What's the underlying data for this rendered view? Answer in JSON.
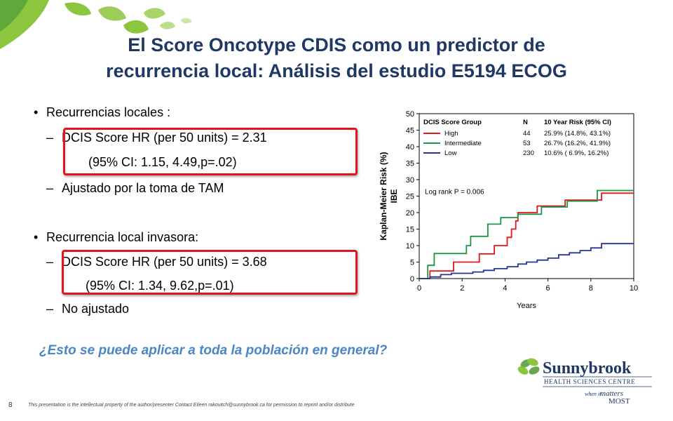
{
  "title": {
    "line1": "El Score Oncotype CDIS  como un predictor de",
    "line2": "recurrencia local: Análisis del estudio E5194 ECOG"
  },
  "bullets": [
    {
      "text": "Recurrencias locales :"
    },
    {
      "text": "DCIS Score HR (per 50 units) = 2.31"
    },
    {
      "text": "(95% CI: 1.15, 4.49,p=.02)"
    },
    {
      "text": "Ajustado por la toma de TAM"
    },
    {
      "text": "Recurrencia local invasora:"
    },
    {
      "text": "DCIS Score HR (per 50 units) = 3.68"
    },
    {
      "text": "(95% CI: 1.34, 9.62,p=.01)"
    },
    {
      "text": "No ajustado"
    }
  ],
  "question": "¿Esto se puede aplicar a toda la población en general?",
  "slide_number": "8",
  "footer": "This presentation is the intellectual property of the author/presenter    Contact Eileen rakovitch@sunnybrook.ca for permission to reprint and/or distribute",
  "logo": {
    "name": "Sunnybrook",
    "subtitle": "HEALTH SCIENCES CENTRE",
    "tagline_small": "when it",
    "tagline_script": "matters",
    "tagline_caps": "MOST"
  },
  "colors": {
    "title": "#1f3864",
    "question": "#4a86c5",
    "box": "#e2151b",
    "high": "#e2151b",
    "intermediate": "#1a9641",
    "low": "#283593"
  },
  "chart_data": {
    "type": "line",
    "step": true,
    "xlabel": "Years",
    "ylabel": "Kaplan-Meier Risk (%)",
    "ylabel2": "IBE",
    "xlim": [
      0,
      10
    ],
    "ylim": [
      0,
      50
    ],
    "xticks": [
      0,
      2,
      4,
      6,
      8,
      10
    ],
    "yticks": [
      0,
      5,
      10,
      15,
      20,
      25,
      30,
      35,
      40,
      45,
      50
    ],
    "legend": {
      "header": [
        "DCIS Score Group",
        "N",
        "10 Year Risk (95% CI)"
      ],
      "position": "top-left"
    },
    "annotation": "Log rank P = 0.006",
    "series": [
      {
        "name": "High",
        "n": "44",
        "risk": "25.9% (14.8%, 43.1%)",
        "color": "#e2151b",
        "points": [
          [
            0,
            0
          ],
          [
            0.5,
            0
          ],
          [
            0.5,
            2.3
          ],
          [
            1.6,
            2.3
          ],
          [
            1.6,
            5
          ],
          [
            2.8,
            5
          ],
          [
            2.8,
            7.5
          ],
          [
            3.5,
            7.5
          ],
          [
            3.5,
            10
          ],
          [
            4.1,
            10
          ],
          [
            4.1,
            12.5
          ],
          [
            4.3,
            12.5
          ],
          [
            4.3,
            15
          ],
          [
            4.5,
            15
          ],
          [
            4.5,
            17.5
          ],
          [
            4.6,
            17.5
          ],
          [
            4.6,
            20
          ],
          [
            5.5,
            20
          ],
          [
            5.5,
            22
          ],
          [
            6.8,
            22
          ],
          [
            6.8,
            23.8
          ],
          [
            8.5,
            23.8
          ],
          [
            8.5,
            25.9
          ],
          [
            10,
            25.9
          ]
        ]
      },
      {
        "name": "Intermediate",
        "n": "53",
        "risk": "26.7% (16.2%, 41.9%)",
        "color": "#1a9641",
        "points": [
          [
            0,
            0
          ],
          [
            0.4,
            0
          ],
          [
            0.4,
            4
          ],
          [
            0.7,
            4
          ],
          [
            0.7,
            7.6
          ],
          [
            2.2,
            7.6
          ],
          [
            2.2,
            10
          ],
          [
            2.4,
            10
          ],
          [
            2.4,
            12.8
          ],
          [
            3.2,
            12.8
          ],
          [
            3.2,
            16.5
          ],
          [
            3.8,
            16.5
          ],
          [
            3.8,
            18.5
          ],
          [
            4.6,
            18.5
          ],
          [
            4.6,
            19.5
          ],
          [
            5.7,
            19.5
          ],
          [
            5.7,
            21.7
          ],
          [
            6.9,
            21.7
          ],
          [
            6.9,
            23.5
          ],
          [
            8.3,
            23.5
          ],
          [
            8.3,
            26.7
          ],
          [
            10,
            26.7
          ]
        ]
      },
      {
        "name": "Low",
        "n": "230",
        "risk": "10.6% ( 6.9%, 16.2%)",
        "color": "#283593",
        "points": [
          [
            0,
            0
          ],
          [
            0.5,
            0
          ],
          [
            0.5,
            0.5
          ],
          [
            1,
            0.5
          ],
          [
            1,
            1.2
          ],
          [
            1.5,
            1.2
          ],
          [
            1.5,
            1.6
          ],
          [
            2.5,
            1.6
          ],
          [
            2.5,
            2
          ],
          [
            3,
            2
          ],
          [
            3,
            2.5
          ],
          [
            3.5,
            2.5
          ],
          [
            3.5,
            3
          ],
          [
            4.1,
            3
          ],
          [
            4.1,
            3.6
          ],
          [
            4.6,
            3.6
          ],
          [
            4.6,
            4.4
          ],
          [
            5,
            4.4
          ],
          [
            5,
            5
          ],
          [
            5.5,
            5
          ],
          [
            5.5,
            5.6
          ],
          [
            6,
            5.6
          ],
          [
            6,
            6.2
          ],
          [
            6.5,
            6.2
          ],
          [
            6.5,
            7.2
          ],
          [
            7,
            7.2
          ],
          [
            7,
            7.8
          ],
          [
            7.5,
            7.8
          ],
          [
            7.5,
            8.5
          ],
          [
            8,
            8.5
          ],
          [
            8,
            9.3
          ],
          [
            8.5,
            9.3
          ],
          [
            8.5,
            10.6
          ],
          [
            10,
            10.6
          ]
        ]
      }
    ]
  }
}
